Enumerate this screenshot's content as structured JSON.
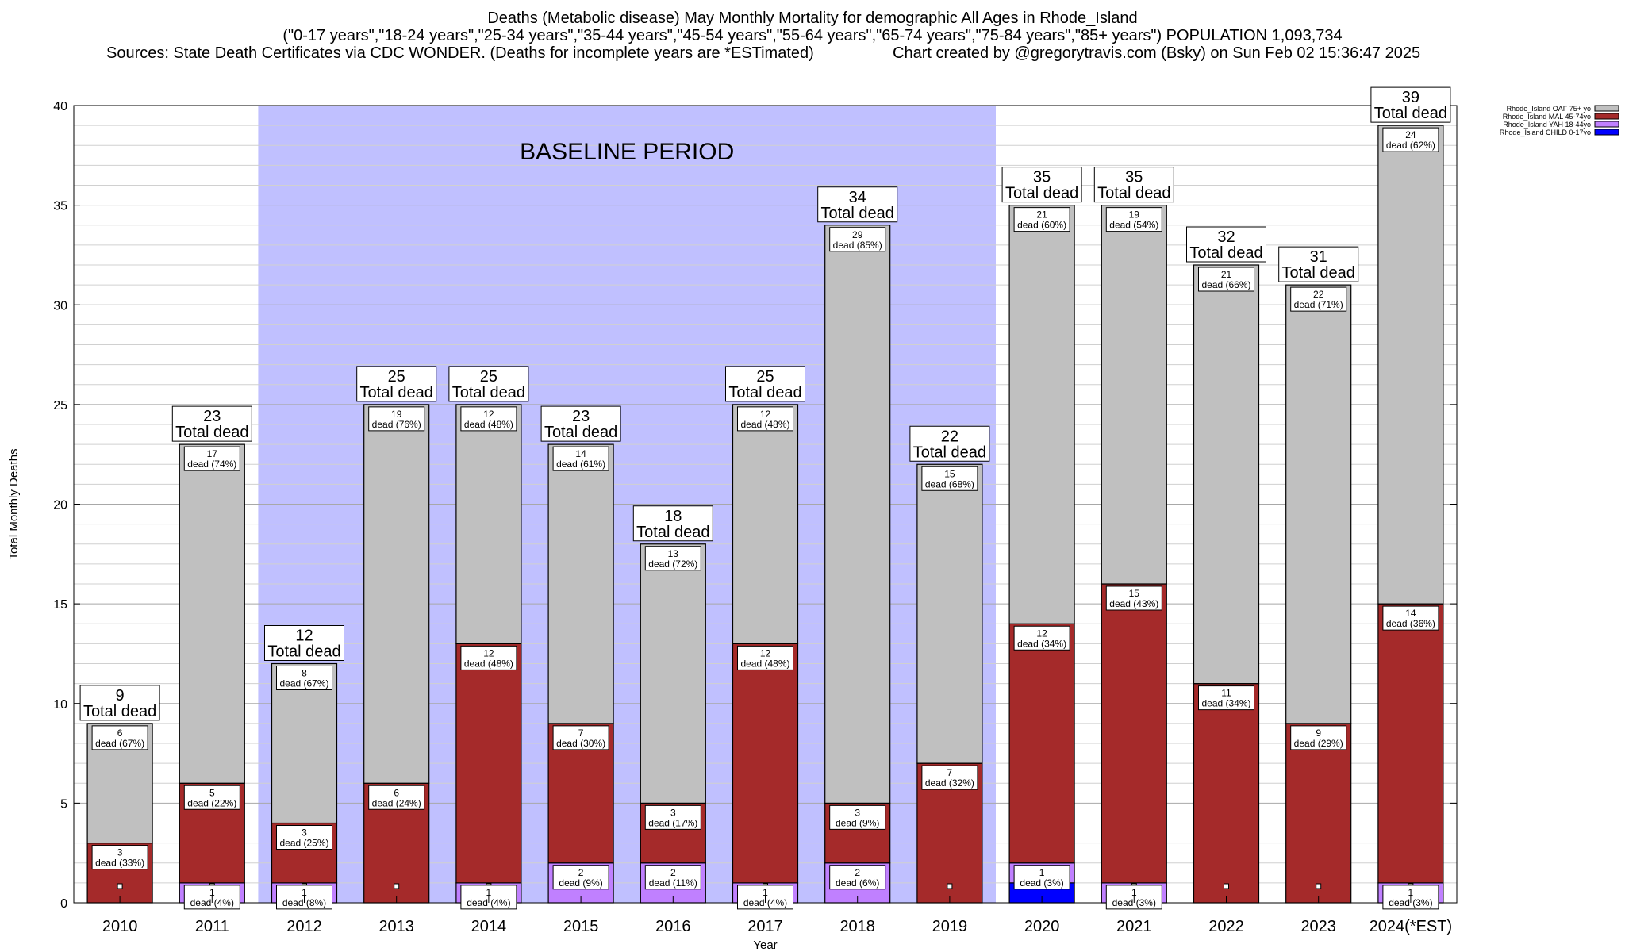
{
  "title": {
    "line1": "Deaths (Metabolic disease) May Monthly Mortality for demographic All Ages in Rhode_Island",
    "line2": "(\"0-17 years\",\"18-24 years\",\"25-34 years\",\"35-44 years\",\"45-54 years\",\"55-64 years\",\"65-74 years\",\"75-84 years\",\"85+ years\") POPULATION 1,093,734",
    "sources": "Sources: State Death Certificates via CDC WONDER. (Deaths for incomplete years are *ESTimated)",
    "credit": "Chart created by @gregorytravis.com (Bsky) on Sun Feb 02 15:36:47 2025"
  },
  "colors": {
    "OAF": "#c0c0c0",
    "MAL": "#a52a2a",
    "YAH": "#c080ff",
    "CHILD": "#0000ff",
    "baseline": "#c0c0ff"
  },
  "chart_data": {
    "type": "bar",
    "stacked": true,
    "xlabel": "Year",
    "ylabel": "Total Monthly Deaths",
    "ylim": [
      0,
      40
    ],
    "yticks": [
      0,
      5,
      10,
      15,
      20,
      25,
      30,
      35,
      40
    ],
    "grid": "horizontal",
    "legend_position": "top-right",
    "baseline_label": "BASELINE PERIOD",
    "baseline_range": [
      "2012",
      "2019"
    ],
    "total_label": "Total dead",
    "dead_word": "dead",
    "categories": [
      "2010",
      "2011",
      "2012",
      "2013",
      "2014",
      "2015",
      "2016",
      "2017",
      "2018",
      "2019",
      "2020",
      "2021",
      "2022",
      "2023",
      "2024(*EST)"
    ],
    "totals": [
      9,
      23,
      12,
      25,
      25,
      23,
      18,
      25,
      34,
      22,
      35,
      35,
      32,
      31,
      39
    ],
    "series": [
      {
        "key": "CHILD",
        "name": "Rhode_Island CHILD 0-17yo",
        "values": [
          0,
          0,
          0,
          0,
          0,
          0,
          0,
          0,
          0,
          0,
          1,
          0,
          0,
          0,
          0
        ],
        "pct": [
          null,
          null,
          null,
          null,
          null,
          null,
          null,
          null,
          null,
          null,
          null,
          null,
          null,
          null,
          null
        ]
      },
      {
        "key": "YAH",
        "name": "Rhode_Island YAH 18-44yo",
        "values": [
          0,
          1,
          1,
          0,
          1,
          2,
          2,
          1,
          2,
          0,
          1,
          1,
          0,
          0,
          1
        ],
        "pct": [
          null,
          "4%",
          "8%",
          null,
          "4%",
          "9%",
          "11%",
          "4%",
          "6%",
          null,
          "3%",
          "3%",
          null,
          null,
          "3%"
        ]
      },
      {
        "key": "MAL",
        "name": "Rhode_Island MAL 45-74yo",
        "values": [
          3,
          5,
          3,
          6,
          12,
          7,
          3,
          12,
          3,
          7,
          12,
          15,
          11,
          9,
          14
        ],
        "pct": [
          "33%",
          "22%",
          "25%",
          "24%",
          "48%",
          "30%",
          "17%",
          "48%",
          "9%",
          "32%",
          "34%",
          "43%",
          "34%",
          "29%",
          "36%"
        ]
      },
      {
        "key": "OAF",
        "name": "Rhode_Island OAF 75+ yo",
        "values": [
          6,
          17,
          8,
          19,
          12,
          14,
          13,
          12,
          29,
          15,
          21,
          19,
          21,
          22,
          24
        ],
        "pct": [
          "67%",
          "74%",
          "67%",
          "76%",
          "48%",
          "61%",
          "72%",
          "48%",
          "85%",
          "68%",
          "60%",
          "54%",
          "66%",
          "71%",
          "62%"
        ]
      }
    ]
  }
}
